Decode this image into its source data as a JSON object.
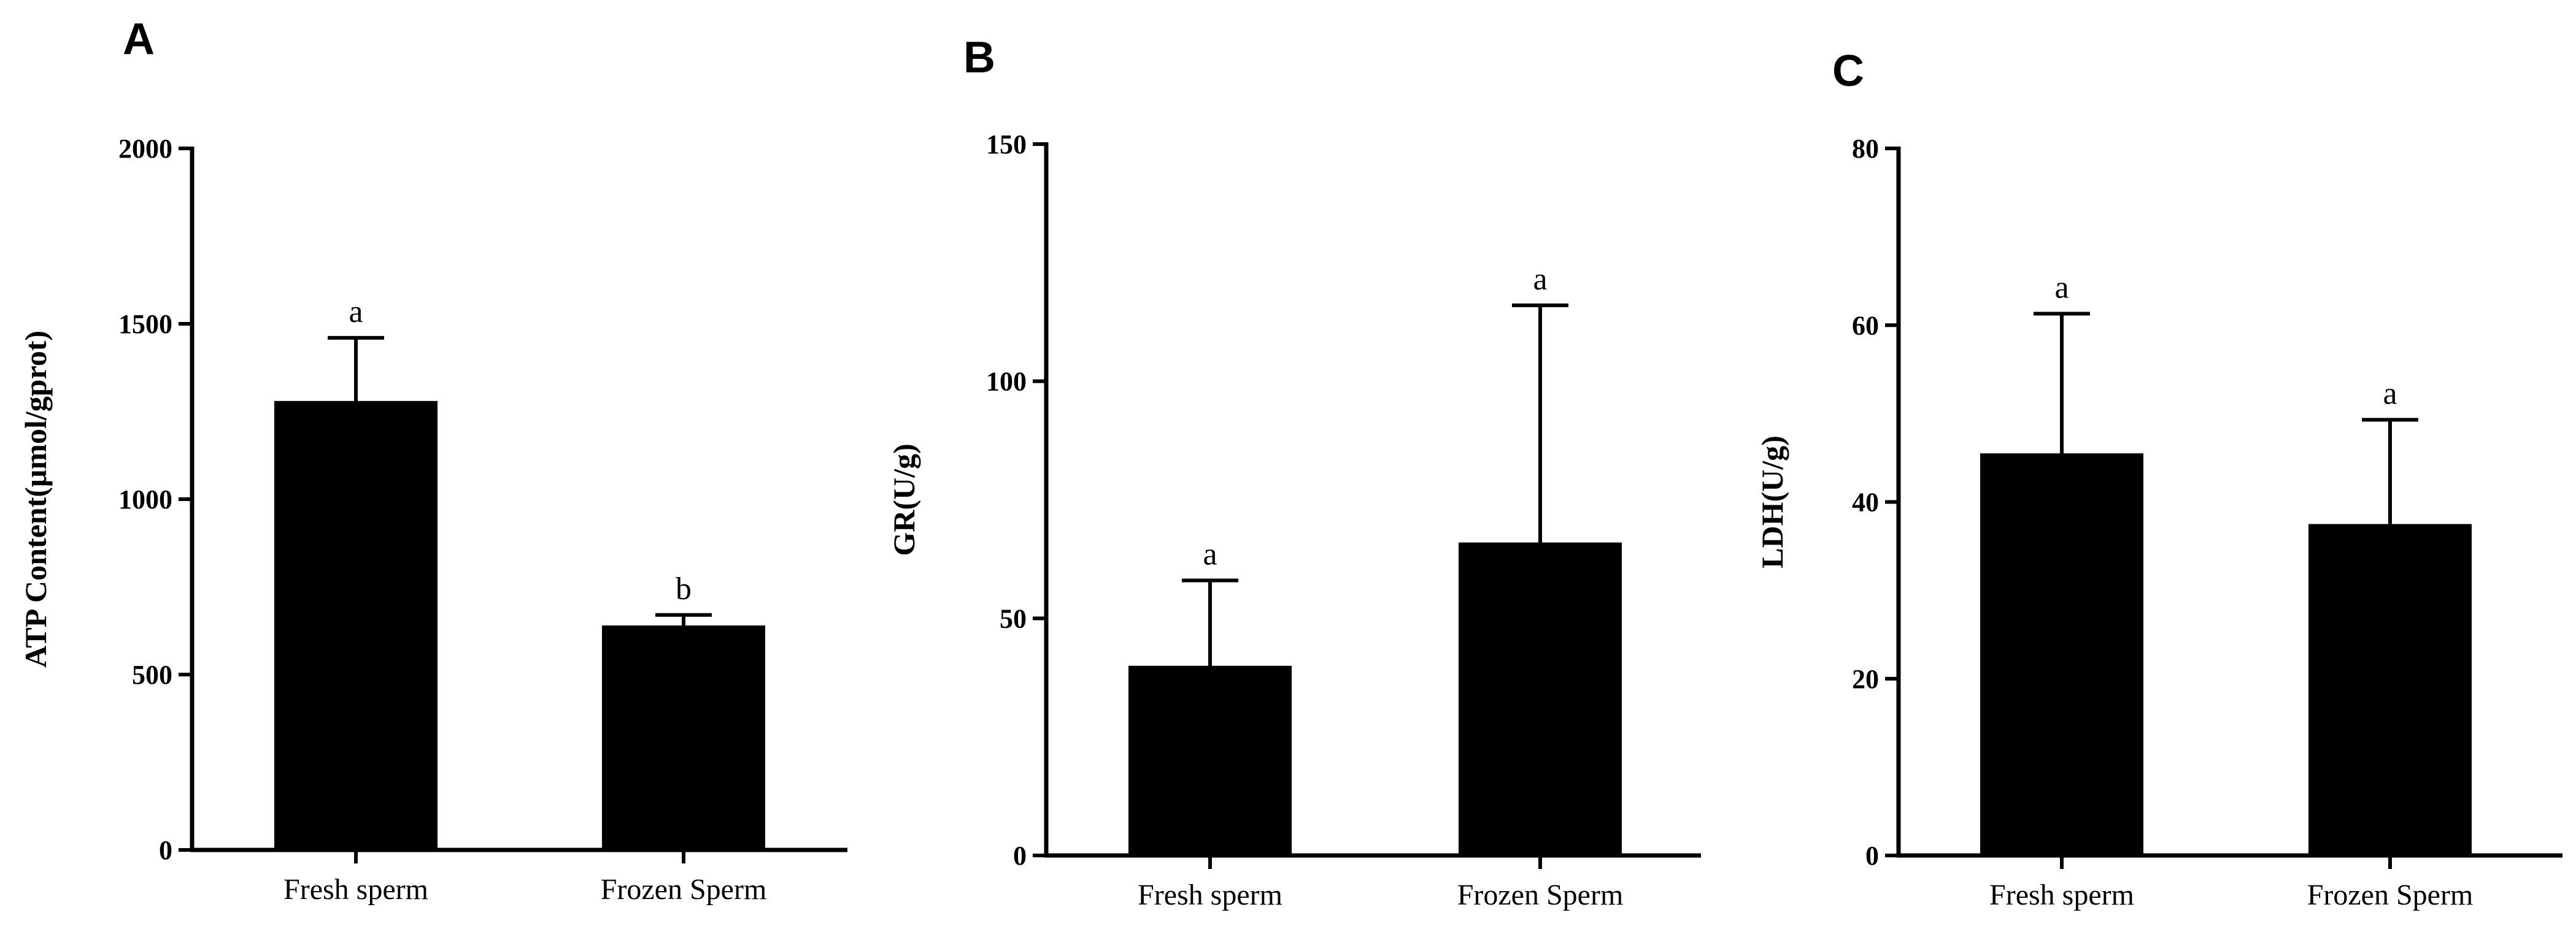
{
  "chart_data": [
    {
      "panel": "A",
      "type": "bar",
      "categories": [
        "Fresh sperm",
        "Frozen Sperm"
      ],
      "values": [
        1280,
        640
      ],
      "errors": [
        180,
        30
      ],
      "significance": [
        "a",
        "b"
      ],
      "ylabel": "ATP Content(μmol/gprot)",
      "xlabel": "",
      "title": "",
      "ylim": [
        0,
        2000
      ],
      "yticks": [
        0,
        500,
        1000,
        1500,
        2000
      ],
      "bar_color": "#000000",
      "grid": false
    },
    {
      "panel": "B",
      "type": "bar",
      "categories": [
        "Fresh sperm",
        "Frozen Sperm"
      ],
      "values": [
        40,
        66
      ],
      "errors": [
        18,
        50
      ],
      "significance": [
        "a",
        "a"
      ],
      "ylabel": "GR(U/g)",
      "xlabel": "",
      "title": "",
      "ylim": [
        0,
        150
      ],
      "yticks": [
        0,
        50,
        100,
        150
      ],
      "bar_color": "#000000",
      "grid": false
    },
    {
      "panel": "C",
      "type": "bar",
      "categories": [
        "Fresh sperm",
        "Frozen Sperm"
      ],
      "values": [
        45.5,
        37.5
      ],
      "errors": [
        15.8,
        11.8
      ],
      "significance": [
        "a",
        "a"
      ],
      "ylabel": "LDH(U/g)",
      "xlabel": "",
      "title": "",
      "ylim": [
        0,
        80
      ],
      "yticks": [
        0,
        20,
        40,
        60,
        80
      ],
      "bar_color": "#000000",
      "grid": false
    }
  ]
}
